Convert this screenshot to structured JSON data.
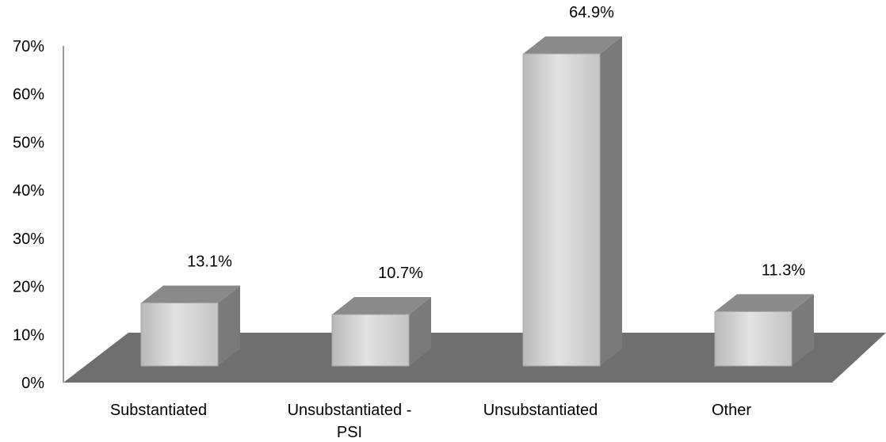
{
  "chart_data": {
    "type": "bar",
    "categories": [
      "Substantiated",
      "Unsubstantiated - PSI",
      "Unsubstantiated",
      "Other"
    ],
    "category_lines": [
      [
        "Substantiated"
      ],
      [
        "Unsubstantiated -",
        "PSI"
      ],
      [
        "Unsubstantiated"
      ],
      [
        "Other"
      ]
    ],
    "values": [
      13.1,
      10.7,
      64.9,
      11.3
    ],
    "data_labels": [
      "13.1%",
      "10.7%",
      "64.9%",
      "11.3%"
    ],
    "yticks": [
      "0%",
      "10%",
      "20%",
      "30%",
      "40%",
      "50%",
      "60%",
      "70%"
    ],
    "ylim": [
      0,
      70
    ],
    "grid": false,
    "legend": "none",
    "style": "3d-grayscale",
    "colors": {
      "bar_front": "#d6d6d6",
      "bar_top": "#8a8a8a",
      "bar_side": "#7a7a7a",
      "floor": "#6f6f6f"
    }
  }
}
